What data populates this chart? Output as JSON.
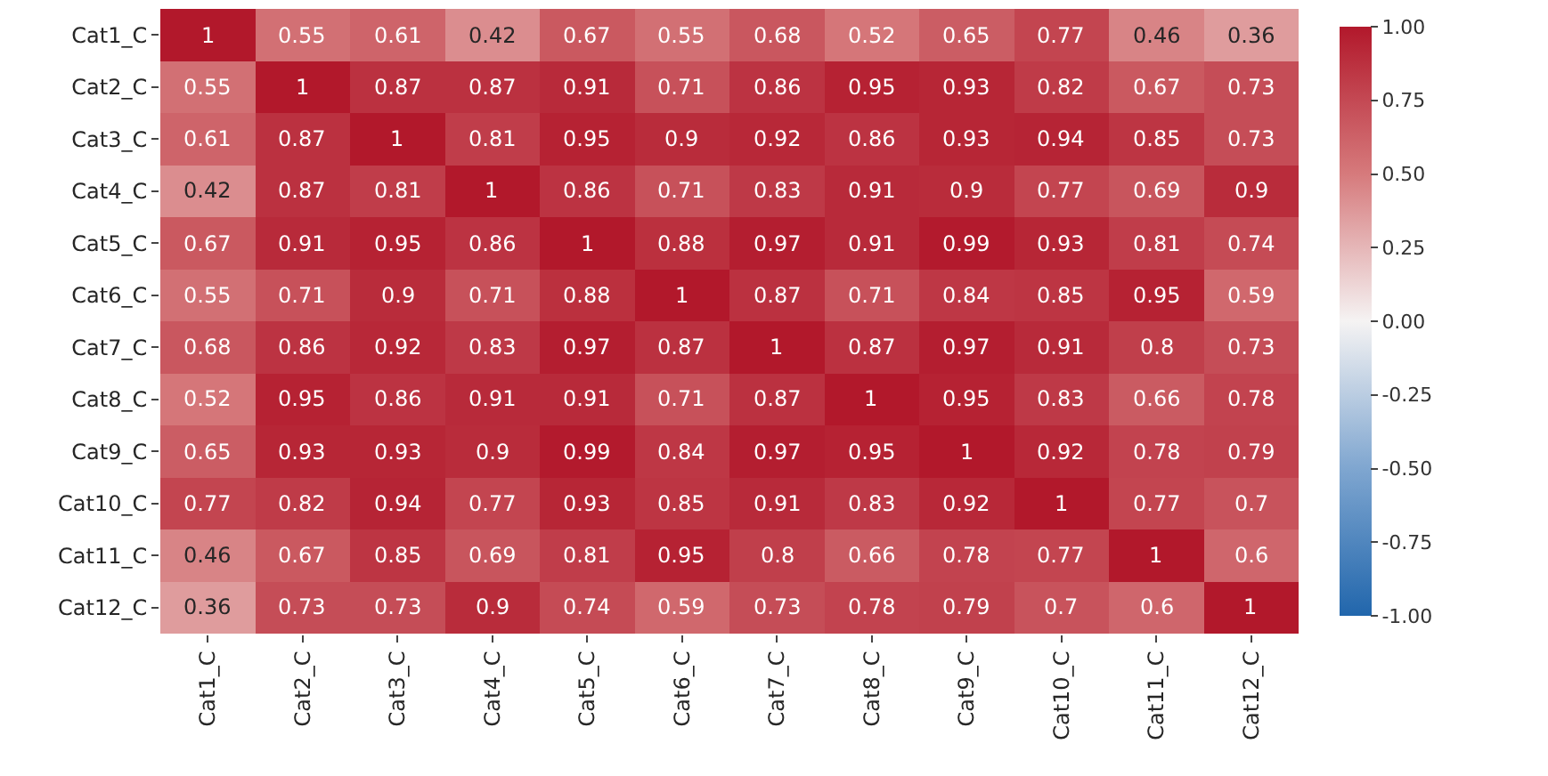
{
  "chart_data": {
    "type": "heatmap",
    "categories": [
      "Cat1_C",
      "Cat2_C",
      "Cat3_C",
      "Cat4_C",
      "Cat5_C",
      "Cat6_C",
      "Cat7_C",
      "Cat8_C",
      "Cat9_C",
      "Cat10_C",
      "Cat11_C",
      "Cat12_C"
    ],
    "y_categories": [
      "Cat1_C",
      "Cat2_C",
      "Cat3_C",
      "Cat4_C",
      "Cat5_C",
      "Cat6_C",
      "Cat7_C",
      "Cat8_C",
      "Cat9_C",
      "Cat10_C",
      "Cat11_C",
      "Cat12_C"
    ],
    "cells": [
      [
        1,
        0.55,
        0.61,
        0.42,
        0.67,
        0.55,
        0.68,
        0.52,
        0.65,
        0.77,
        0.46,
        0.36
      ],
      [
        0.55,
        1,
        0.87,
        0.87,
        0.91,
        0.71,
        0.86,
        0.95,
        0.93,
        0.82,
        0.67,
        0.73
      ],
      [
        0.61,
        0.87,
        1,
        0.81,
        0.95,
        0.9,
        0.92,
        0.86,
        0.93,
        0.94,
        0.85,
        0.73
      ],
      [
        0.42,
        0.87,
        0.81,
        1,
        0.86,
        0.71,
        0.83,
        0.91,
        0.9,
        0.77,
        0.69,
        0.9
      ],
      [
        0.67,
        0.91,
        0.95,
        0.86,
        1,
        0.88,
        0.97,
        0.91,
        0.99,
        0.93,
        0.81,
        0.74
      ],
      [
        0.55,
        0.71,
        0.9,
        0.71,
        0.88,
        1,
        0.87,
        0.71,
        0.84,
        0.85,
        0.95,
        0.59
      ],
      [
        0.68,
        0.86,
        0.92,
        0.83,
        0.97,
        0.87,
        1,
        0.87,
        0.97,
        0.91,
        0.8,
        0.73
      ],
      [
        0.52,
        0.95,
        0.86,
        0.91,
        0.91,
        0.71,
        0.87,
        1,
        0.95,
        0.83,
        0.66,
        0.78
      ],
      [
        0.65,
        0.93,
        0.93,
        0.9,
        0.99,
        0.84,
        0.97,
        0.95,
        1,
        0.92,
        0.78,
        0.79
      ],
      [
        0.77,
        0.82,
        0.94,
        0.77,
        0.93,
        0.85,
        0.91,
        0.83,
        0.92,
        1,
        0.77,
        0.7
      ],
      [
        0.46,
        0.67,
        0.85,
        0.69,
        0.81,
        0.95,
        0.8,
        0.66,
        0.78,
        0.77,
        1,
        0.6
      ],
      [
        0.36,
        0.73,
        0.73,
        0.9,
        0.74,
        0.59,
        0.73,
        0.78,
        0.79,
        0.7,
        0.6,
        1
      ]
    ],
    "clim": [
      -1,
      1
    ],
    "cticks": [
      {
        "value": 1,
        "label": "1.00"
      },
      {
        "value": 0.75,
        "label": "0.75"
      },
      {
        "value": 0.5,
        "label": "0.50"
      },
      {
        "value": 0.25,
        "label": "0.25"
      },
      {
        "value": 0,
        "label": "0.00"
      },
      {
        "value": -0.25,
        "label": "-0.25"
      },
      {
        "value": -0.5,
        "label": "-0.50"
      },
      {
        "value": -0.75,
        "label": "-0.75"
      },
      {
        "value": -1,
        "label": "-1.00"
      }
    ],
    "data_labels": true
  }
}
